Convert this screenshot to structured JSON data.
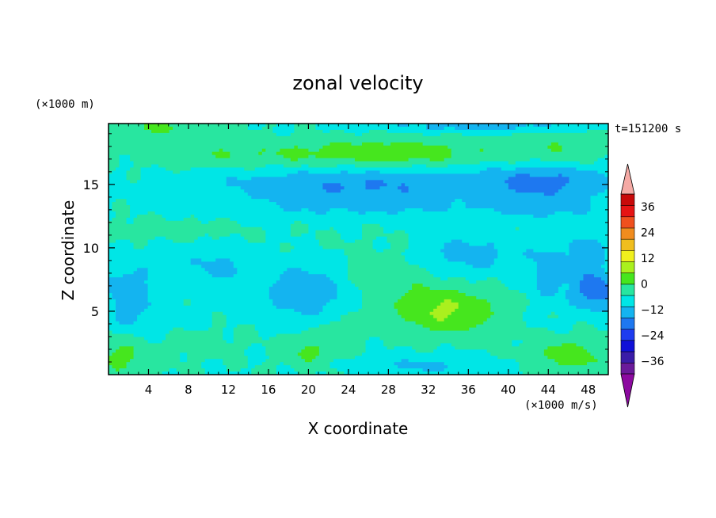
{
  "chart_data": {
    "type": "heatmap",
    "title": "zonal velocity",
    "xlabel": "X coordinate",
    "ylabel": "Z coordinate",
    "x_unit": "(×1000 m/s)",
    "y_unit": "(×1000 m)",
    "time_label": "t=151200 s",
    "xlim": [
      0,
      50
    ],
    "ylim": [
      0,
      19.8
    ],
    "x_ticks": [
      4,
      8,
      12,
      16,
      20,
      24,
      28,
      32,
      36,
      40,
      44,
      48
    ],
    "y_ticks": [
      5,
      10,
      15
    ],
    "grid": false,
    "colorbar": {
      "position": "right",
      "ticks": [
        36,
        24,
        12,
        0,
        -12,
        -24,
        -36
      ],
      "levels": [
        -42,
        -36,
        -30,
        -24,
        -18,
        -12,
        -6,
        0,
        6,
        12,
        18,
        24,
        30,
        36,
        42
      ],
      "colors": [
        "#6a1a9a",
        "#3a1ca8",
        "#1010d8",
        "#1e3cf0",
        "#1e78f0",
        "#14b4f0",
        "#00e6e6",
        "#28e6a0",
        "#46e61e",
        "#aaf01e",
        "#f0f01e",
        "#f0be1e",
        "#f08c1e",
        "#f0501e",
        "#e61414",
        "#c80a0a"
      ],
      "under_color": "#8c0aa0",
      "over_color": "#f5aaa5"
    },
    "features": [
      {
        "x": 28,
        "z": 17.5,
        "u": 10,
        "sx": 10,
        "sz": 1.1
      },
      {
        "x": 12,
        "z": 17.3,
        "u": 5,
        "sx": 9,
        "sz": 1.0
      },
      {
        "x": 45,
        "z": 17.8,
        "u": 5,
        "sx": 6,
        "sz": 1.2
      },
      {
        "x": 4,
        "z": 19.5,
        "u": 7,
        "sx": 6,
        "sz": 0.8
      },
      {
        "x": 25,
        "z": 15,
        "u": -12,
        "sx": 15,
        "sz": 1.3
      },
      {
        "x": 44,
        "z": 15.2,
        "u": -12,
        "sx": 7,
        "sz": 1.4
      },
      {
        "x": 26,
        "z": 13.2,
        "u": -6,
        "sx": 16,
        "sz": 1.0
      },
      {
        "x": 44,
        "z": 13.0,
        "u": -5,
        "sx": 6,
        "sz": 1.0
      },
      {
        "x": 6,
        "z": 11.5,
        "u": 3,
        "sx": 6,
        "sz": 0.8
      },
      {
        "x": 2,
        "z": 6.5,
        "u": -10,
        "sx": 2.5,
        "sz": 2.5
      },
      {
        "x": 11,
        "z": 8.5,
        "u": -7,
        "sx": 5,
        "sz": 1.5
      },
      {
        "x": 20,
        "z": 6.5,
        "u": -12,
        "sx": 4.5,
        "sz": 2.0
      },
      {
        "x": 36,
        "z": 9.5,
        "u": -9,
        "sx": 5,
        "sz": 1.6
      },
      {
        "x": 44,
        "z": 8,
        "u": -8,
        "sx": 2.5,
        "sz": 2.5
      },
      {
        "x": 49,
        "z": 6.5,
        "u": -16,
        "sx": 2.5,
        "sz": 1.5
      },
      {
        "x": 48,
        "z": 9.5,
        "u": -9,
        "sx": 2,
        "sz": 2.0
      },
      {
        "x": 34,
        "z": 5,
        "u": 13,
        "sx": 5,
        "sz": 1.7
      },
      {
        "x": 28,
        "z": 7.5,
        "u": 5,
        "sx": 5,
        "sz": 2.2
      },
      {
        "x": 23.5,
        "z": 3.5,
        "u": 3,
        "sx": 2.5,
        "sz": 2.0
      },
      {
        "x": 20,
        "z": 1.8,
        "u": 7,
        "sx": 2.5,
        "sz": 1.2
      },
      {
        "x": 9,
        "z": 2.5,
        "u": 4,
        "sx": 3,
        "sz": 1.0
      },
      {
        "x": 1,
        "z": 1.5,
        "u": 8,
        "sx": 3,
        "sz": 1.5
      },
      {
        "x": 46,
        "z": 1.5,
        "u": 10,
        "sx": 4,
        "sz": 1.2
      },
      {
        "x": 32,
        "z": 0.7,
        "u": -7,
        "sx": 8,
        "sz": 0.8
      },
      {
        "x": 37,
        "z": 19.6,
        "u": -9,
        "sx": 10,
        "sz": 0.5
      },
      {
        "x": 5,
        "z": 4.5,
        "u": -3,
        "sx": 5,
        "sz": 1.5
      }
    ]
  }
}
